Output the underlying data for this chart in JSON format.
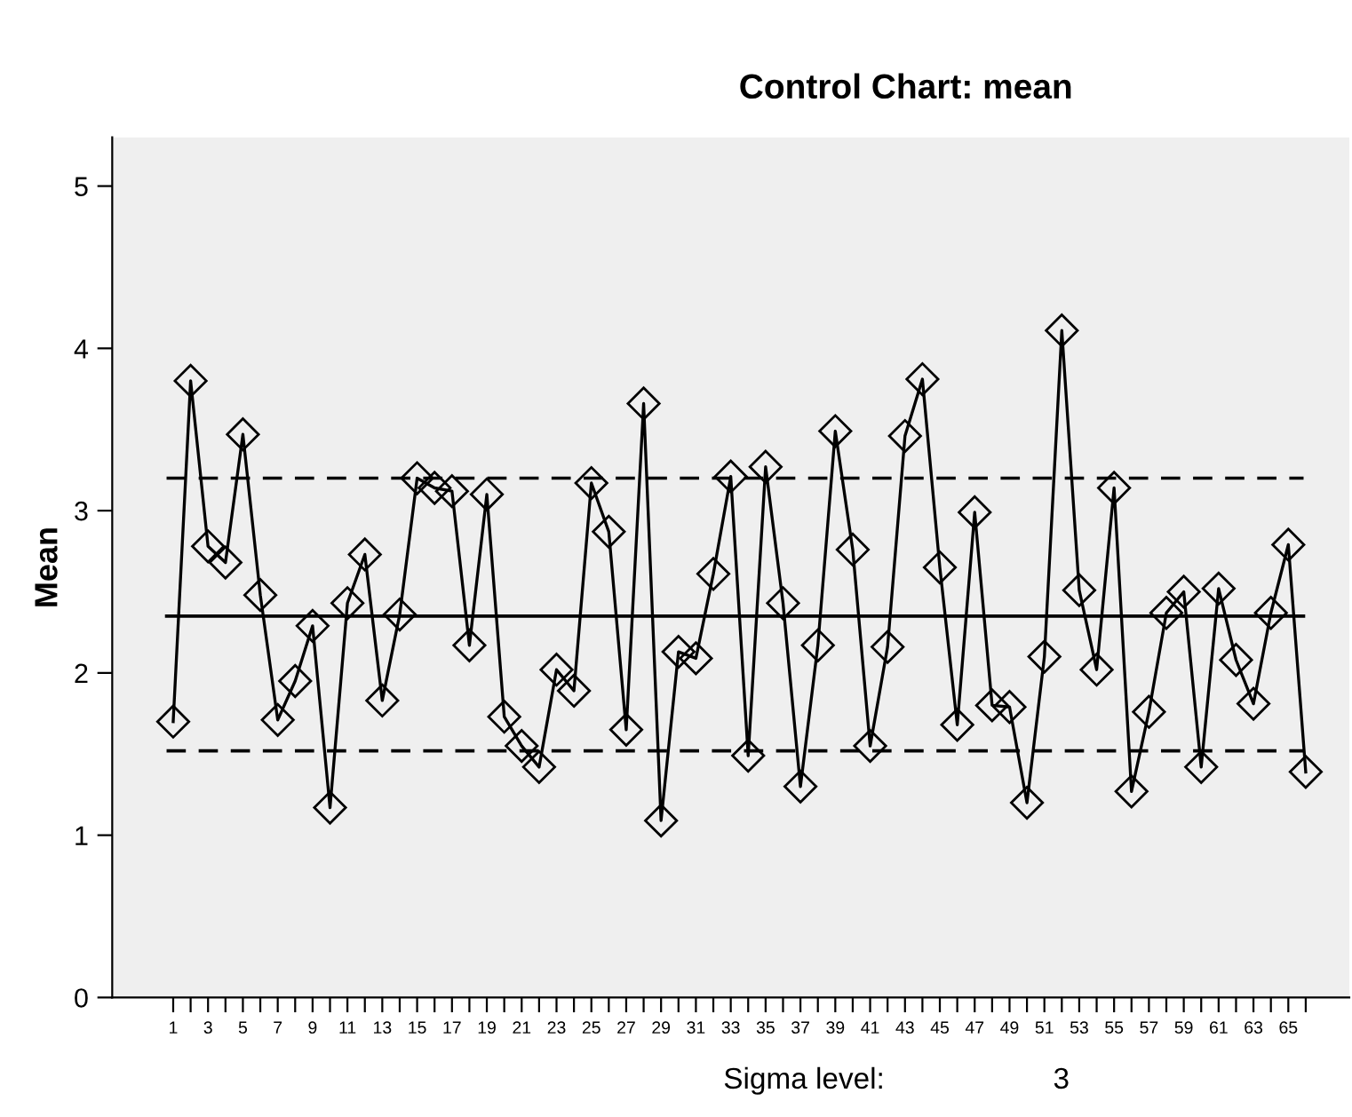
{
  "chart_data": {
    "type": "line",
    "title": "Control Chart: mean",
    "ylabel": "Mean",
    "categories": [
      "1",
      null,
      "3",
      null,
      "5",
      null,
      "7",
      null,
      "9",
      null,
      "11",
      null,
      "13",
      null,
      "15",
      null,
      "17",
      null,
      "19",
      null,
      "21",
      null,
      "23",
      null,
      "25",
      null,
      "27",
      null,
      "29",
      null,
      "31",
      null,
      "33",
      null,
      "35",
      null,
      "37",
      null,
      "39",
      null,
      "41",
      null,
      "43",
      null,
      "45",
      null,
      "47",
      null,
      "49",
      null,
      "51",
      null,
      "53",
      null,
      "55",
      null,
      "57",
      null,
      "59",
      null,
      "61",
      null,
      "63",
      null,
      "65",
      null
    ],
    "series": [
      {
        "color": "#000000",
        "values": [
          1.7,
          3.8,
          2.78,
          2.68,
          3.47,
          2.48,
          1.71,
          1.95,
          2.29,
          1.17,
          2.43,
          2.73,
          1.83,
          2.36,
          3.2,
          3.14,
          3.12,
          2.17,
          3.1,
          1.73,
          1.55,
          1.42,
          2.02,
          1.89,
          3.17,
          2.87,
          1.65,
          3.66,
          1.09,
          2.13,
          2.09,
          2.61,
          3.21,
          1.49,
          3.27,
          2.43,
          1.3,
          2.17,
          3.49,
          2.76,
          1.55,
          2.16,
          3.46,
          3.81,
          2.65,
          1.68,
          2.99,
          1.8,
          1.79,
          1.2,
          2.1,
          4.11,
          2.51,
          2.02,
          3.14,
          1.27,
          1.76,
          2.37,
          2.5,
          1.42,
          2.52,
          2.08,
          1.81,
          2.37,
          2.79,
          1.39
        ]
      }
    ],
    "ylim": [
      0,
      5.3
    ],
    "yticks": [
      0,
      1,
      2,
      3,
      4,
      5
    ],
    "marker": "diamond",
    "line_style": "solid",
    "grid": false,
    "legend": false,
    "ref_lines": [
      {
        "axis": "y",
        "value": 2.35,
        "color": "#000000",
        "line_style": "solid"
      },
      {
        "axis": "y",
        "value": 3.2,
        "color": "#000000",
        "line_style": "dashed"
      },
      {
        "axis": "y",
        "value": 1.52,
        "color": "#000000",
        "line_style": "dashed"
      }
    ],
    "annotations": [
      "Sigma level:",
      "3"
    ]
  }
}
